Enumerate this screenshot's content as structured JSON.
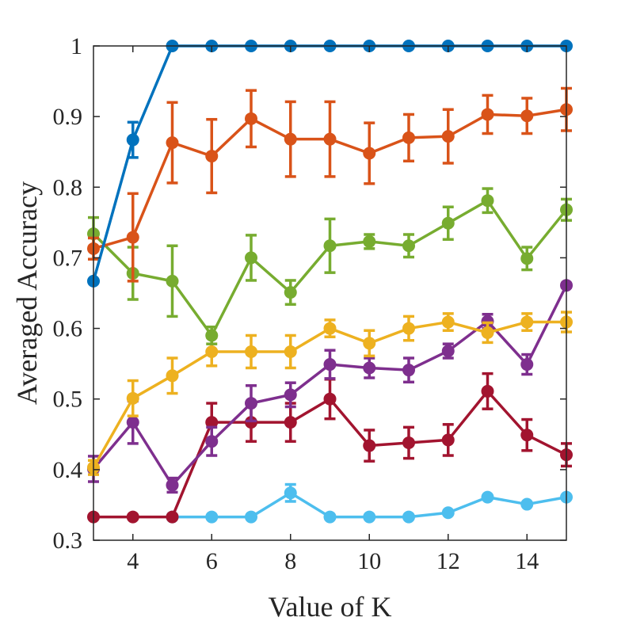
{
  "chart_data": {
    "type": "line",
    "title": "",
    "xlabel": "Value of K",
    "ylabel": "Averaged Accuracy",
    "xlim": [
      3,
      15
    ],
    "ylim": [
      0.3,
      1
    ],
    "xticks": [
      4,
      6,
      8,
      10,
      12,
      14
    ],
    "yticks": [
      0.3,
      0.4,
      0.5,
      0.6,
      0.7,
      0.8,
      0.9,
      1
    ],
    "x": [
      3,
      4,
      5,
      6,
      7,
      8,
      9,
      10,
      11,
      12,
      13,
      14,
      15
    ],
    "grid": false,
    "legend": "none",
    "error_bars": true,
    "series": [
      {
        "color": "#0072BD",
        "values": [
          0.667,
          0.867,
          1.0,
          1.0,
          1.0,
          1.0,
          1.0,
          1.0,
          1.0,
          1.0,
          1.0,
          1.0,
          1.0
        ],
        "errors": [
          0,
          0.025,
          0,
          0,
          0,
          0,
          0,
          0,
          0,
          0,
          0,
          0,
          0
        ]
      },
      {
        "color": "#D95319",
        "values": [
          0.713,
          0.729,
          0.863,
          0.844,
          0.897,
          0.868,
          0.868,
          0.848,
          0.87,
          0.872,
          0.903,
          0.901,
          0.91
        ],
        "errors": [
          0.015,
          0.062,
          0.057,
          0.052,
          0.04,
          0.053,
          0.053,
          0.043,
          0.033,
          0.038,
          0.027,
          0.025,
          0.03
        ]
      },
      {
        "color": "#77AC30",
        "values": [
          0.734,
          0.678,
          0.667,
          0.59,
          0.7,
          0.651,
          0.717,
          0.723,
          0.717,
          0.749,
          0.781,
          0.699,
          0.768
        ],
        "errors": [
          0.023,
          0.037,
          0.05,
          0.012,
          0.032,
          0.017,
          0.038,
          0.01,
          0.016,
          0.023,
          0.017,
          0.016,
          0.015
        ]
      },
      {
        "color": "#EDB120",
        "values": [
          0.403,
          0.501,
          0.533,
          0.567,
          0.567,
          0.567,
          0.6,
          0.579,
          0.6,
          0.609,
          0.594,
          0.609,
          0.609
        ],
        "errors": [
          0.01,
          0.025,
          0.025,
          0.02,
          0.023,
          0.023,
          0.012,
          0.018,
          0.017,
          0.012,
          0.014,
          0.012,
          0.014
        ]
      },
      {
        "color": "#7E2F8E",
        "values": [
          0.401,
          0.467,
          0.378,
          0.44,
          0.494,
          0.506,
          0.549,
          0.544,
          0.541,
          0.568,
          0.61,
          0.549,
          0.661
        ],
        "errors": [
          0.018,
          0.03,
          0.01,
          0.02,
          0.025,
          0.017,
          0.02,
          0.014,
          0.017,
          0.01,
          0.01,
          0.014,
          0.003
        ]
      },
      {
        "color": "#A2142F",
        "values": [
          0.333,
          0.333,
          0.333,
          0.467,
          0.467,
          0.467,
          0.5,
          0.434,
          0.438,
          0.442,
          0.511,
          0.449,
          0.421
        ],
        "errors": [
          0,
          0,
          0,
          0.027,
          0.027,
          0.027,
          0.028,
          0.022,
          0.022,
          0.022,
          0.025,
          0.022,
          0.016
        ]
      },
      {
        "color": "#4DBEEE",
        "values": [
          null,
          null,
          0.333,
          0.333,
          0.333,
          0.367,
          0.333,
          0.333,
          0.333,
          0.339,
          0.361,
          0.351,
          0.361
        ],
        "errors": [
          0,
          0,
          0,
          0,
          0,
          0.012,
          0,
          0,
          0,
          0,
          0,
          0,
          0
        ]
      }
    ]
  }
}
